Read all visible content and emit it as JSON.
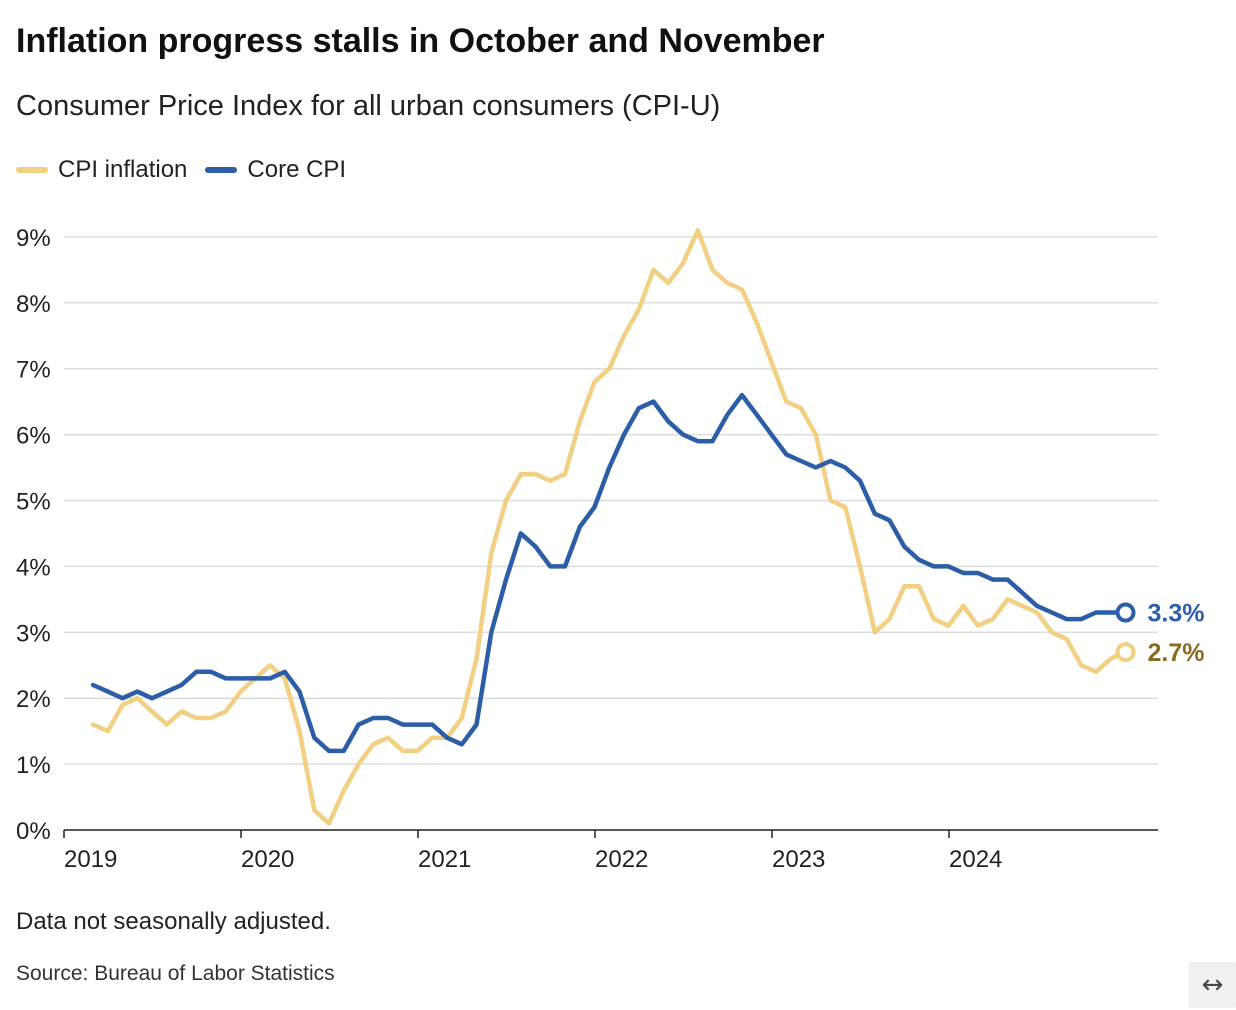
{
  "title": "Inflation progress stalls in October and November",
  "subtitle": "Consumer Price Index for all urban consumers (CPI-U)",
  "note": "Data not seasonally adjusted.",
  "source": "Source: Bureau of Labor Statistics",
  "expand_icon": "↔",
  "colors": {
    "cpi": "#f2cf83",
    "core": "#2c5ea8",
    "cpi_label": "#8a6a1f",
    "core_label": "#2c5ea8",
    "grid": "#dddddd",
    "axis": "#222222"
  },
  "chart_data": {
    "type": "line",
    "title": "Inflation progress stalls in October and November",
    "subtitle": "Consumer Price Index for all urban consumers (CPI-U)",
    "xlabel": "",
    "ylabel": "",
    "ylim": [
      0,
      9
    ],
    "yticks": [
      "0%",
      "1%",
      "2%",
      "3%",
      "4%",
      "5%",
      "6%",
      "7%",
      "8%",
      "9%"
    ],
    "xticks": [
      "2019",
      "2020",
      "2021",
      "2022",
      "2023",
      "2024"
    ],
    "grid": true,
    "legend": "top-left",
    "x_start": "2019-01",
    "x_end": "2024-11",
    "end_labels": [
      "3.3%",
      "2.7%"
    ],
    "series": [
      {
        "name": "CPI inflation",
        "values": [
          1.6,
          1.5,
          1.9,
          2.0,
          1.8,
          1.6,
          1.8,
          1.7,
          1.7,
          1.8,
          2.1,
          2.3,
          2.5,
          2.3,
          1.5,
          0.3,
          0.1,
          0.6,
          1.0,
          1.3,
          1.4,
          1.2,
          1.2,
          1.4,
          1.4,
          1.7,
          2.6,
          4.2,
          5.0,
          5.4,
          5.4,
          5.3,
          5.4,
          6.2,
          6.8,
          7.0,
          7.5,
          7.9,
          8.5,
          8.3,
          8.6,
          9.1,
          8.5,
          8.3,
          8.2,
          7.7,
          7.1,
          6.5,
          6.4,
          6.0,
          5.0,
          4.9,
          4.0,
          3.0,
          3.2,
          3.7,
          3.7,
          3.2,
          3.1,
          3.4,
          3.1,
          3.2,
          3.5,
          3.4,
          3.3,
          3.0,
          2.9,
          2.5,
          2.4,
          2.6,
          2.7
        ]
      },
      {
        "name": "Core CPI",
        "values": [
          2.2,
          2.1,
          2.0,
          2.1,
          2.0,
          2.1,
          2.2,
          2.4,
          2.4,
          2.3,
          2.3,
          2.3,
          2.3,
          2.4,
          2.1,
          1.4,
          1.2,
          1.2,
          1.6,
          1.7,
          1.7,
          1.6,
          1.6,
          1.6,
          1.4,
          1.3,
          1.6,
          3.0,
          3.8,
          4.5,
          4.3,
          4.0,
          4.0,
          4.6,
          4.9,
          5.5,
          6.0,
          6.4,
          6.5,
          6.2,
          6.0,
          5.9,
          5.9,
          6.3,
          6.6,
          6.3,
          6.0,
          5.7,
          5.6,
          5.5,
          5.6,
          5.5,
          5.3,
          4.8,
          4.7,
          4.3,
          4.1,
          4.0,
          4.0,
          3.9,
          3.9,
          3.8,
          3.8,
          3.6,
          3.4,
          3.3,
          3.2,
          3.2,
          3.3,
          3.3,
          3.3
        ]
      }
    ]
  }
}
